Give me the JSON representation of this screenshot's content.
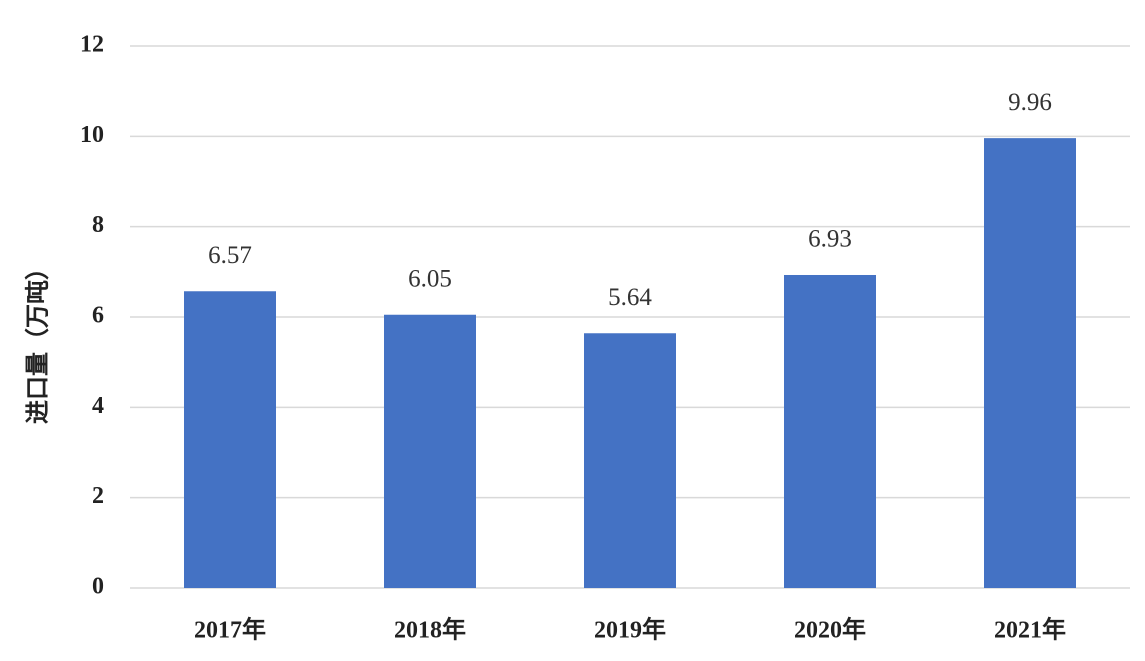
{
  "chart_data": {
    "type": "bar",
    "y_label": "进口量（万吨）",
    "categories": [
      "2017年",
      "2018年",
      "2019年",
      "2020年",
      "2021年"
    ],
    "values": [
      6.57,
      6.05,
      5.64,
      6.93,
      9.96
    ],
    "color": "#4472c4",
    "ylim": [
      0,
      12
    ],
    "yticks": [
      0,
      2,
      4,
      6,
      8,
      10,
      12
    ],
    "grid": true,
    "data_labels": true
  }
}
